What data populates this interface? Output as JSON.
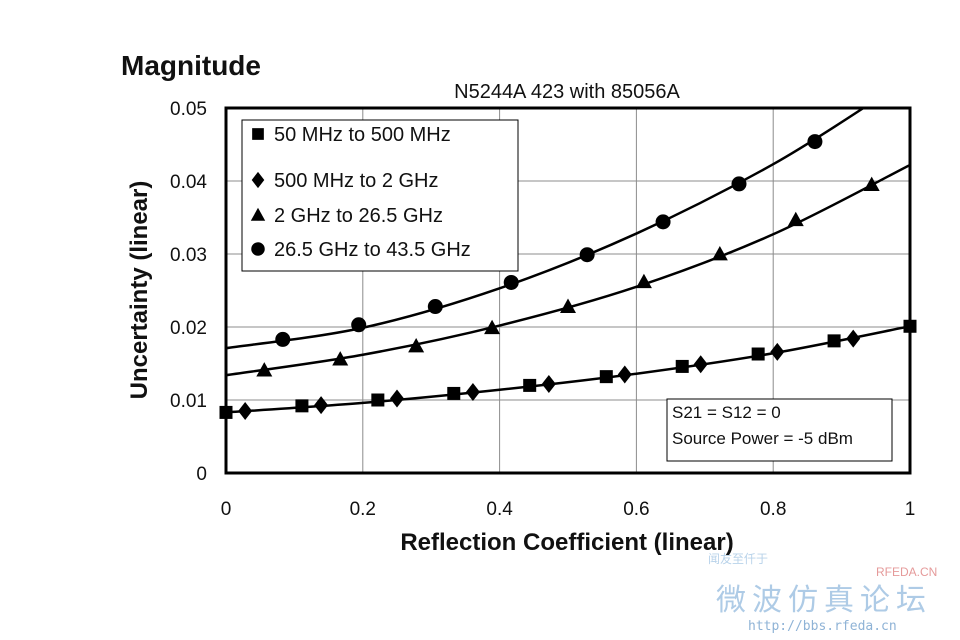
{
  "heading": "Magnitude",
  "chart_data": {
    "type": "line",
    "title": "N5244A 423 with 85056A",
    "xlabel": "Reflection Coefficient (linear)",
    "ylabel": "Uncertainty (linear)",
    "xlim": [
      0,
      1
    ],
    "ylim": [
      0,
      0.05
    ],
    "xticks": [
      "0",
      "0.2",
      "0.4",
      "0.6",
      "0.8",
      "1"
    ],
    "yticks": [
      "0",
      "0.01",
      "0.02",
      "0.03",
      "0.04",
      "0.05"
    ],
    "grid": true,
    "legend_position": "top-left",
    "series": [
      {
        "name": "50 MHz to 500 MHz",
        "marker": "square",
        "curve": [
          [
            0,
            0.0083
          ],
          [
            0.2,
            0.0096
          ],
          [
            0.4,
            0.0114
          ],
          [
            0.6,
            0.0136
          ],
          [
            0.8,
            0.0164
          ],
          [
            1.0,
            0.0201
          ]
        ],
        "points": [
          [
            0.0,
            0.0083
          ],
          [
            0.111,
            0.0092
          ],
          [
            0.222,
            0.01
          ],
          [
            0.333,
            0.0109
          ],
          [
            0.444,
            0.012
          ],
          [
            0.556,
            0.0132
          ],
          [
            0.667,
            0.0146
          ],
          [
            0.778,
            0.0163
          ],
          [
            0.889,
            0.0181
          ],
          [
            1.0,
            0.0201
          ]
        ]
      },
      {
        "name": "500 MHz to 2 GHz",
        "marker": "diamond",
        "curve": [
          [
            0,
            0.0083
          ],
          [
            0.2,
            0.0096
          ],
          [
            0.4,
            0.0114
          ],
          [
            0.6,
            0.0136
          ],
          [
            0.8,
            0.0164
          ],
          [
            1.0,
            0.0201
          ]
        ],
        "points": [
          [
            0.028,
            0.0085
          ],
          [
            0.139,
            0.0093
          ],
          [
            0.25,
            0.0102
          ],
          [
            0.361,
            0.0111
          ],
          [
            0.472,
            0.0122
          ],
          [
            0.583,
            0.0135
          ],
          [
            0.694,
            0.0149
          ],
          [
            0.806,
            0.0166
          ],
          [
            0.917,
            0.0184
          ]
        ]
      },
      {
        "name": "2 GHz to 26.5 GHz",
        "marker": "triangle",
        "curve": [
          [
            0,
            0.0134
          ],
          [
            0.2,
            0.0162
          ],
          [
            0.4,
            0.0202
          ],
          [
            0.6,
            0.0255
          ],
          [
            0.8,
            0.0327
          ],
          [
            1.0,
            0.0422
          ]
        ],
        "points": [
          [
            0.056,
            0.0141
          ],
          [
            0.167,
            0.0156
          ],
          [
            0.278,
            0.0174
          ],
          [
            0.389,
            0.0199
          ],
          [
            0.5,
            0.0228
          ],
          [
            0.611,
            0.0262
          ],
          [
            0.722,
            0.03
          ],
          [
            0.833,
            0.0347
          ],
          [
            0.944,
            0.0395
          ]
        ]
      },
      {
        "name": "26.5 GHz to 43.5 GHz",
        "marker": "circle",
        "curve": [
          [
            0,
            0.0171
          ],
          [
            0.2,
            0.0199
          ],
          [
            0.4,
            0.0253
          ],
          [
            0.6,
            0.0328
          ],
          [
            0.8,
            0.0423
          ],
          [
            0.96,
            0.0517
          ]
        ],
        "points": [
          [
            0.083,
            0.0183
          ],
          [
            0.194,
            0.0203
          ],
          [
            0.306,
            0.0228
          ],
          [
            0.417,
            0.0261
          ],
          [
            0.528,
            0.0299
          ],
          [
            0.639,
            0.0344
          ],
          [
            0.75,
            0.0396
          ],
          [
            0.861,
            0.0454
          ]
        ]
      }
    ],
    "annotation": [
      "S21 = S12 = 0",
      "Source Power = -5 dBm"
    ]
  },
  "watermark": {
    "small": "闻友至仟于",
    "brand": "RFEDA.CN",
    "big": "微波仿真论坛",
    "url": "http://bbs.rfeda.cn"
  }
}
